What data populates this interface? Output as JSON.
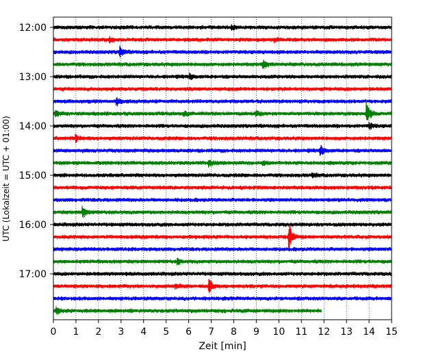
{
  "chart_data": {
    "type": "line",
    "title": "",
    "xlabel": "Zeit  [min]",
    "ylabel": "UTC (Lokalzeit = UTC + 01:00)",
    "xlim": [
      0,
      15
    ],
    "xticks": [
      "0",
      "1",
      "2",
      "3",
      "4",
      "5",
      "6",
      "7",
      "8",
      "9",
      "10",
      "11",
      "12",
      "13",
      "14",
      "15"
    ],
    "yticks": [
      "12:00",
      "13:00",
      "14:00",
      "15:00",
      "16:00",
      "17:00"
    ],
    "grid_x": true,
    "grid_style": "dotted",
    "trace_interval_minutes": 15,
    "start_time": "12:00",
    "colors": [
      "#000000",
      "#ff0000",
      "#0000ff",
      "#008000"
    ],
    "series": [
      {
        "start": "12:00",
        "color": "#000000",
        "end_min": 15,
        "events": [
          {
            "t": 7.9,
            "amp": 1.2
          }
        ]
      },
      {
        "start": "12:15",
        "color": "#ff0000",
        "end_min": 15,
        "events": [
          {
            "t": 2.5,
            "amp": 1.0
          },
          {
            "t": 9.8,
            "amp": 1.0
          }
        ]
      },
      {
        "start": "12:30",
        "color": "#0000ff",
        "end_min": 15,
        "events": [
          {
            "t": 2.95,
            "amp": 2.4
          }
        ]
      },
      {
        "start": "12:45",
        "color": "#008000",
        "end_min": 15,
        "events": [
          {
            "t": 9.3,
            "amp": 2.0
          }
        ]
      },
      {
        "start": "13:00",
        "color": "#000000",
        "end_min": 15,
        "events": [
          {
            "t": 6.05,
            "amp": 1.2
          }
        ]
      },
      {
        "start": "13:15",
        "color": "#ff0000",
        "end_min": 15,
        "events": []
      },
      {
        "start": "13:30",
        "color": "#0000ff",
        "end_min": 15,
        "events": [
          {
            "t": 2.8,
            "amp": 1.6
          }
        ]
      },
      {
        "start": "13:45",
        "color": "#008000",
        "end_min": 15,
        "events": [
          {
            "t": 0.1,
            "amp": 1.6
          },
          {
            "t": 5.8,
            "amp": 1.0
          },
          {
            "t": 9.0,
            "amp": 1.0
          },
          {
            "t": 13.9,
            "amp": 5.5
          }
        ]
      },
      {
        "start": "14:00",
        "color": "#000000",
        "end_min": 15,
        "events": [
          {
            "t": 14.0,
            "amp": 1.6
          }
        ]
      },
      {
        "start": "14:15",
        "color": "#ff0000",
        "end_min": 15,
        "events": [
          {
            "t": 1.0,
            "amp": 1.5
          }
        ]
      },
      {
        "start": "14:30",
        "color": "#0000ff",
        "end_min": 15,
        "events": [
          {
            "t": 11.85,
            "amp": 2.5
          }
        ]
      },
      {
        "start": "14:45",
        "color": "#008000",
        "end_min": 15,
        "events": [
          {
            "t": 6.9,
            "amp": 1.6
          },
          {
            "t": 9.3,
            "amp": 1.0
          }
        ]
      },
      {
        "start": "15:00",
        "color": "#000000",
        "end_min": 15,
        "events": [
          {
            "t": 11.5,
            "amp": 1.0
          }
        ]
      },
      {
        "start": "15:15",
        "color": "#ff0000",
        "end_min": 15,
        "events": []
      },
      {
        "start": "15:30",
        "color": "#0000ff",
        "end_min": 15,
        "events": []
      },
      {
        "start": "15:45",
        "color": "#008000",
        "end_min": 15,
        "events": [
          {
            "t": 1.3,
            "amp": 3.0
          }
        ]
      },
      {
        "start": "16:00",
        "color": "#000000",
        "end_min": 15,
        "events": []
      },
      {
        "start": "16:15",
        "color": "#ff0000",
        "end_min": 15,
        "events": [
          {
            "t": 10.45,
            "amp": 6.0
          }
        ]
      },
      {
        "start": "16:30",
        "color": "#0000ff",
        "end_min": 15,
        "events": []
      },
      {
        "start": "16:45",
        "color": "#008000",
        "end_min": 15,
        "events": [
          {
            "t": 5.5,
            "amp": 1.0
          }
        ]
      },
      {
        "start": "17:00",
        "color": "#000000",
        "end_min": 15,
        "events": []
      },
      {
        "start": "17:15",
        "color": "#ff0000",
        "end_min": 15,
        "events": [
          {
            "t": 5.4,
            "amp": 1.3
          },
          {
            "t": 6.9,
            "amp": 3.2
          }
        ]
      },
      {
        "start": "17:30",
        "color": "#0000ff",
        "end_min": 15,
        "events": []
      },
      {
        "start": "17:45",
        "color": "#008000",
        "end_min": 11.9,
        "events": [
          {
            "t": 0.15,
            "amp": 1.5
          }
        ]
      }
    ]
  }
}
